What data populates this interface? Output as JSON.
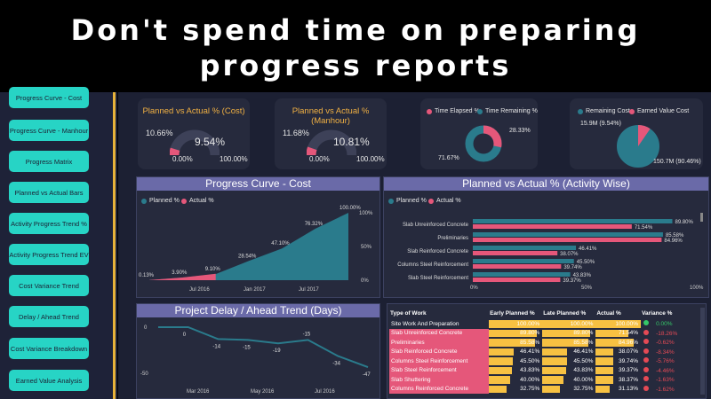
{
  "banner": {
    "line1": "Don't spend time on preparing",
    "line2": "progress reports"
  },
  "nav": [
    "Progress Curve - Cost",
    "Progress Curve - Manhour",
    "Progress Matrix",
    "Planned vs Actual Bars",
    "Activity Progress Trend %",
    "Activity Progress Trend EV",
    "Cost Variance Trend",
    "Delay / Ahead Trend",
    "Cost Variance Breakdown",
    "Earned Value Analysis"
  ],
  "kpis": [
    {
      "title": "Planned vs Actual % (Cost)",
      "side": "10.66%",
      "center": "9.54%",
      "min": "0.00%",
      "max": "100.00%",
      "fill": 0.0954,
      "marker": 0.1066
    },
    {
      "title": "Planned vs Actual % (Manhour)",
      "side": "11.68%",
      "center": "10.81%",
      "min": "0.00%",
      "max": "100.00%",
      "fill": 0.1081,
      "marker": 0.1168
    }
  ],
  "donut_time": {
    "legend": [
      "Time Elapsed %",
      "Time Remaining %"
    ],
    "elapsed_label": "28.33%",
    "remaining_label": "71.67%",
    "elapsed": 28.33,
    "remaining": 71.67
  },
  "donut_cost": {
    "legend": [
      "Remaining Cost",
      "Earned Value Cost"
    ],
    "ev_label": "15.9M (9.54%)",
    "remaining_label": "150.7M (90.46%)",
    "ev": 9.54,
    "remaining": 90.46
  },
  "colors": {
    "teal": "#2a7b8c",
    "pink": "#e5577a",
    "yellow": "#f7c142",
    "green": "#35c768",
    "red": "#e54a55",
    "banner_text": "#ffffff",
    "nav": "#27d4c5"
  },
  "curve": {
    "title": "Progress Curve - Cost",
    "legend": [
      "Planned %",
      "Actual %"
    ],
    "x_ticks": [
      "Jul 2016",
      "Jan 2017",
      "Jul 2017"
    ],
    "y_ticks": [
      "100%",
      "50%",
      "0%"
    ],
    "labels": [
      "0.13%",
      "3.90%",
      "9.10%",
      "28.54%",
      "47.10%",
      "76.32%",
      "100.00%"
    ]
  },
  "chart_data": [
    {
      "type": "area",
      "title": "Progress Curve - Cost",
      "series": [
        {
          "name": "Planned %",
          "x": [
            "2016-02",
            "2016-05",
            "2016-08",
            "2016-11",
            "2017-02",
            "2017-05",
            "2017-08"
          ],
          "values": [
            0.13,
            3.9,
            9.1,
            28.54,
            47.1,
            76.32,
            100.0
          ]
        },
        {
          "name": "Actual %",
          "x": [
            "2016-02",
            "2016-05",
            "2016-08"
          ],
          "values": [
            0.13,
            3.9,
            9.54
          ]
        }
      ],
      "ylim": [
        0,
        100
      ]
    },
    {
      "type": "bar",
      "title": "Planned vs Actual % (Activity Wise)",
      "categories": [
        "Slab Unreinforced Concrete",
        "Preliminaries",
        "Slab Reinforced Concrete",
        "Columns Steel Reinforcement",
        "Slab Steel Reinforcement"
      ],
      "series": [
        {
          "name": "Planned %",
          "values": [
            89.8,
            85.58,
            46.41,
            45.5,
            43.83
          ]
        },
        {
          "name": "Actual %",
          "values": [
            71.54,
            84.96,
            38.07,
            39.74,
            39.37
          ]
        }
      ],
      "xlim": [
        0,
        100
      ]
    },
    {
      "type": "line",
      "title": "Project Delay / Ahead Trend (Days)",
      "x": [
        "Feb 2016",
        "Mar 2016",
        "Apr 2016",
        "May 2016",
        "Jun 2016",
        "Jul 2016",
        "Aug 2016",
        "Sep 2016"
      ],
      "values": [
        0,
        0,
        -14,
        -15,
        -19,
        -15,
        -34,
        -47
      ],
      "ylim": [
        -50,
        0
      ]
    }
  ],
  "activity": {
    "title": "Planned vs Actual % (Activity Wise)",
    "legend": [
      "Planned %",
      "Actual %"
    ],
    "rows": [
      {
        "name": "Slab Unreinforced Concrete",
        "planned": "89.80%",
        "actual": "71.54%"
      },
      {
        "name": "Preliminaries",
        "planned": "85.58%",
        "actual": "84.96%"
      },
      {
        "name": "Slab Reinforced Concrete",
        "planned": "46.41%",
        "actual": "38.07%"
      },
      {
        "name": "Columns Steel Reinforcement",
        "planned": "45.50%",
        "actual": "39.74%"
      },
      {
        "name": "Slab Steel Reinforcement",
        "planned": "43.83%",
        "actual": "39.37%"
      }
    ],
    "x_ticks": [
      "0%",
      "50%",
      "100%"
    ]
  },
  "delay": {
    "title": "Project Delay / Ahead Trend (Days)",
    "labels": [
      "0",
      "-14",
      "-15",
      "-19",
      "-15",
      "-34",
      "-47"
    ],
    "y_labels": [
      "0",
      "-50"
    ],
    "x_ticks": [
      "Mar 2016",
      "May 2016",
      "Jul 2016"
    ]
  },
  "table": {
    "headers": [
      "Type of Work",
      "Early Planned %",
      "Late Planned %",
      "Actual %",
      "Variance %"
    ],
    "rows": [
      {
        "name": "Site Work And Preparation",
        "ep": "100.00%",
        "lp": "100.00%",
        "act": "100.00%",
        "var": "0.00%",
        "status": "good",
        "epf": 1.0,
        "lpf": 1.0,
        "af": 1.0
      },
      {
        "name": "Slab Unreinforced Concrete",
        "ep": "89.80%",
        "lp": "89.80%",
        "act": "71.54%",
        "var": "-18.26%",
        "status": "bad",
        "epf": 0.898,
        "lpf": 0.898,
        "af": 0.7154
      },
      {
        "name": "Preliminaries",
        "ep": "85.58%",
        "lp": "85.58%",
        "act": "84.96%",
        "var": "-0.62%",
        "status": "bad",
        "epf": 0.8558,
        "lpf": 0.8558,
        "af": 0.8496
      },
      {
        "name": "Slab Reinforced Concrete",
        "ep": "46.41%",
        "lp": "46.41%",
        "act": "38.07%",
        "var": "-8.34%",
        "status": "bad",
        "epf": 0.4641,
        "lpf": 0.4641,
        "af": 0.3807
      },
      {
        "name": "Columns Steel Reinforcement",
        "ep": "45.50%",
        "lp": "45.50%",
        "act": "39.74%",
        "var": "-5.76%",
        "status": "bad",
        "epf": 0.455,
        "lpf": 0.455,
        "af": 0.3974
      },
      {
        "name": "Slab Steel Reinforcement",
        "ep": "43.83%",
        "lp": "43.83%",
        "act": "39.37%",
        "var": "-4.46%",
        "status": "bad",
        "epf": 0.4383,
        "lpf": 0.4383,
        "af": 0.3937
      },
      {
        "name": "Slab Shuttering",
        "ep": "40.00%",
        "lp": "40.00%",
        "act": "38.37%",
        "var": "-1.63%",
        "status": "bad",
        "epf": 0.4,
        "lpf": 0.4,
        "af": 0.3837
      },
      {
        "name": "Columns Reinforced Concrete",
        "ep": "32.75%",
        "lp": "32.75%",
        "act": "31.13%",
        "var": "-1.62%",
        "status": "bad",
        "epf": 0.3275,
        "lpf": 0.3275,
        "af": 0.3113
      }
    ]
  }
}
